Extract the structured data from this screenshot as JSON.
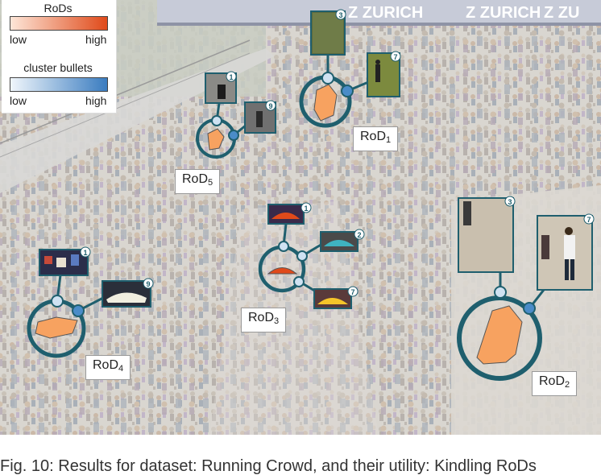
{
  "banner": {
    "text": "ZURICH",
    "repeat_left": "Z ZURICH",
    "repeat_mid": "Z ZURICH",
    "repeat_right": "Z ZU"
  },
  "legend": {
    "rods_title": "RoDs",
    "rods_low": "low",
    "rods_high": "high",
    "bullets_title": "cluster bullets",
    "bullets_low": "low",
    "bullets_high": "high"
  },
  "regions": [
    {
      "id": "RoD1",
      "base": "RoD",
      "index": "1",
      "thumbs": [
        "3",
        "7"
      ]
    },
    {
      "id": "RoD2",
      "base": "RoD",
      "index": "2",
      "thumbs": [
        "3",
        "7"
      ]
    },
    {
      "id": "RoD3",
      "base": "RoD",
      "index": "3",
      "thumbs": [
        "1",
        "2",
        "7"
      ]
    },
    {
      "id": "RoD4",
      "base": "RoD",
      "index": "4",
      "thumbs": [
        "1",
        "9"
      ]
    },
    {
      "id": "RoD5",
      "base": "RoD",
      "index": "5",
      "thumbs": [
        "1",
        "9"
      ]
    }
  ],
  "colors": {
    "rod_low": "#fde6d8",
    "rod_mid": "#f7a260",
    "rod_high": "#e04a1a",
    "bullet_low": "#f0f6fb",
    "bullet_high": "#3a7cc0",
    "ring": "#1f5f6e",
    "bullet_fill": "#cfe2f2",
    "bullet_dark": "#4a8cc8"
  },
  "caption": "Fig. 10: Results for dataset: Running Crowd, and their utility: Kindling RoDs"
}
